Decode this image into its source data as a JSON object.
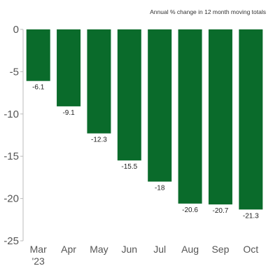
{
  "subtitle": "Annual % change in 12 month moving totals",
  "chart_data": {
    "type": "bar",
    "title": "",
    "subtitle": "Annual % change in 12 month moving totals",
    "xlabel": "",
    "ylabel": "",
    "categories": [
      "Mar '23",
      "Apr",
      "May",
      "Jun",
      "Jul",
      "Aug",
      "Sep",
      "Oct"
    ],
    "category_lines": [
      [
        "Mar",
        "'23"
      ],
      [
        "Apr"
      ],
      [
        "May"
      ],
      [
        "Jun"
      ],
      [
        "Jul"
      ],
      [
        "Aug"
      ],
      [
        "Sep"
      ],
      [
        "Oct"
      ]
    ],
    "values": [
      -6.1,
      -9.1,
      -12.3,
      -15.5,
      -18,
      -20.6,
      -20.7,
      -21.3
    ],
    "value_labels": [
      "-6.1",
      "-9.1",
      "-12.3",
      "-15.5",
      "-18",
      "-20.6",
      "-20.7",
      "-21.3"
    ],
    "ylim": [
      -25,
      0
    ],
    "yticks": [
      0,
      -5,
      -10,
      -15,
      -20,
      -25
    ],
    "grid": false,
    "legend": "none",
    "bar_color": "#0a6b2b"
  }
}
